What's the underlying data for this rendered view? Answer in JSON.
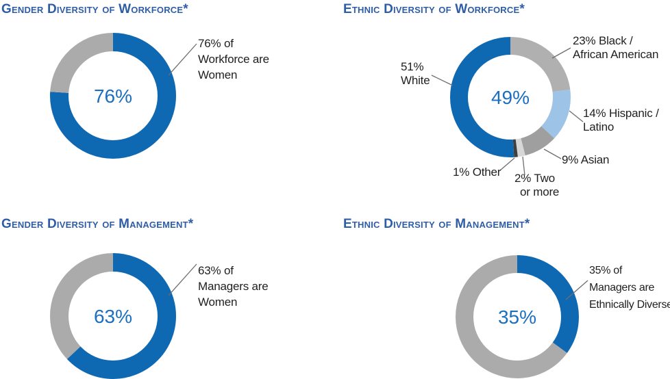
{
  "colors": {
    "primary_blue": "#0f68b2",
    "light_blue": "#9dc3e6",
    "gray_segment": "#b0b0b0",
    "gray_remainder": "#ababab",
    "gray_asian": "#9f9fa0",
    "gray_light": "#d7d7d7",
    "charcoal": "#404040",
    "title_blue": "#2e5da6",
    "center_label_blue": "#1b6fbe",
    "label_text": "#1f1f1f",
    "leader_line": "#6e6e6e",
    "background": "#ffffff"
  },
  "chart_data": [
    {
      "type": "pie",
      "variant": "donut",
      "title": "Gender Diversity of Workforce*",
      "center_label": "76%",
      "start_angle_deg": 0,
      "direction": "clockwise",
      "slices": [
        {
          "label": "Women",
          "value": 76,
          "color_key": "primary_blue"
        },
        {
          "label": "Remainder",
          "value": 24,
          "color_key": "gray_remainder"
        }
      ],
      "callout_lines": [
        "76% of",
        "Workforce are",
        "Women"
      ]
    },
    {
      "type": "pie",
      "variant": "donut",
      "title": "Ethnic Diversity of Workforce*",
      "center_label": "49%",
      "start_angle_deg": 0,
      "direction": "clockwise",
      "slices": [
        {
          "label": "23% Black / African American",
          "value": 23,
          "color_key": "gray_segment"
        },
        {
          "label": "14% Hispanic / Latino",
          "value": 14,
          "color_key": "light_blue"
        },
        {
          "label": "9% Asian",
          "value": 9,
          "color_key": "gray_asian"
        },
        {
          "label": "2% Two or more",
          "value": 2,
          "color_key": "gray_light"
        },
        {
          "label": "1% Other",
          "value": 1,
          "color_key": "charcoal"
        },
        {
          "label": "51% White",
          "value": 51,
          "color_key": "primary_blue"
        }
      ],
      "labels": {
        "white": [
          "51%",
          "White"
        ],
        "black": [
          "23% Black /",
          "African American"
        ],
        "hispanic": [
          "14% Hispanic /",
          "Latino"
        ],
        "asian": [
          "9% Asian"
        ],
        "two_or_more": [
          "2% Two",
          "or more"
        ],
        "other": [
          "1% Other"
        ]
      }
    },
    {
      "type": "pie",
      "variant": "donut",
      "title": "Gender Diversity of Management*",
      "center_label": "63%",
      "start_angle_deg": 0,
      "direction": "clockwise",
      "slices": [
        {
          "label": "Women",
          "value": 63,
          "color_key": "primary_blue"
        },
        {
          "label": "Remainder",
          "value": 37,
          "color_key": "gray_remainder"
        }
      ],
      "callout_lines": [
        "63% of",
        "Managers are",
        "Women"
      ]
    },
    {
      "type": "pie",
      "variant": "donut",
      "title": "Ethnic Diversity of Management*",
      "center_label": "35%",
      "start_angle_deg": 0,
      "direction": "clockwise",
      "slices": [
        {
          "label": "Ethnically Diverse",
          "value": 35,
          "color_key": "primary_blue"
        },
        {
          "label": "Remainder",
          "value": 65,
          "color_key": "gray_remainder"
        }
      ],
      "callout_lines": [
        "35% of",
        "Managers are",
        "Ethnically Diverse"
      ]
    }
  ]
}
